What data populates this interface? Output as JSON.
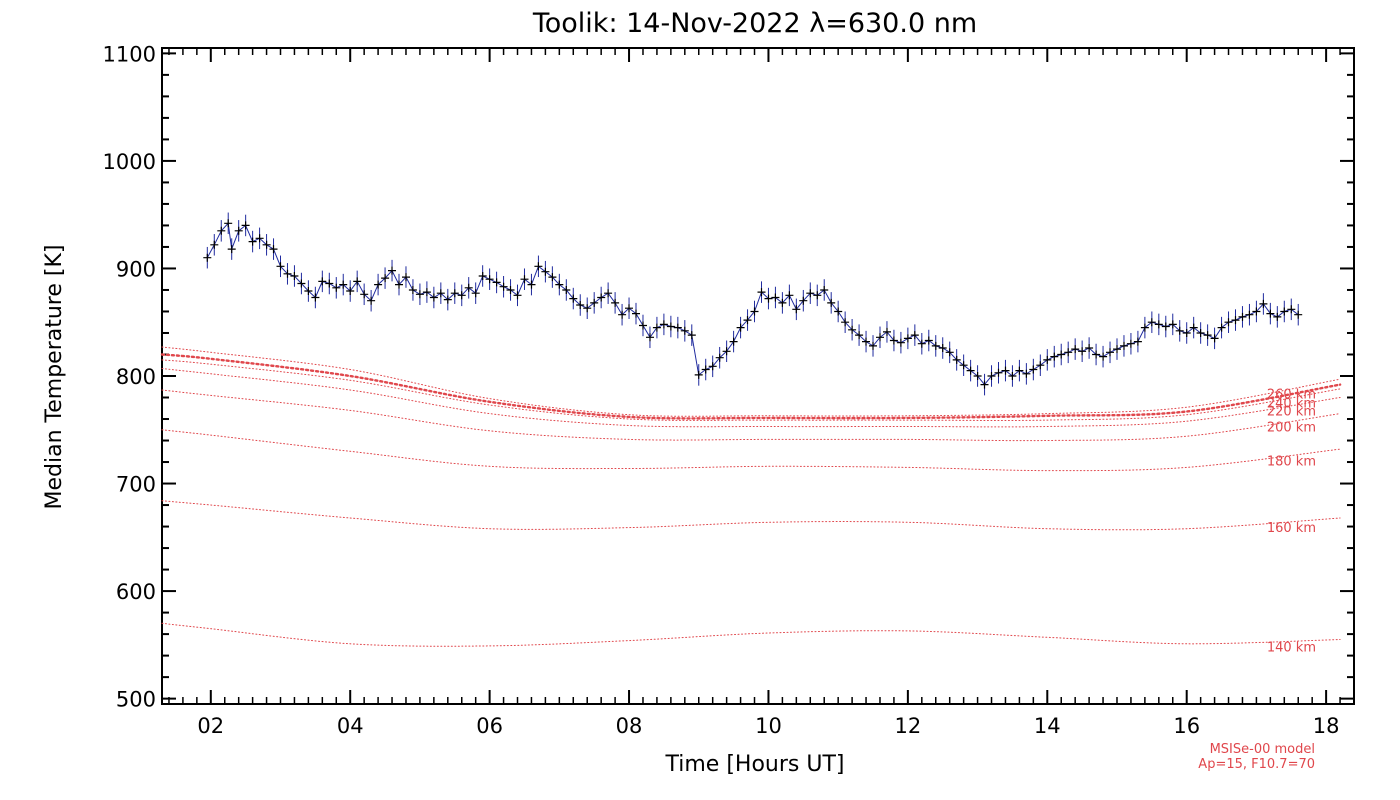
{
  "chart_data": {
    "type": "line",
    "title": "Toolik: 14-Nov-2022 λ=630.0 nm",
    "xlabel": "Time [Hours UT]",
    "ylabel": "Median Temperature [K]",
    "xlim": [
      1.3,
      18.4
    ],
    "ylim": [
      495,
      1105
    ],
    "xticks": [
      2,
      4,
      6,
      8,
      10,
      12,
      14,
      16,
      18
    ],
    "xtick_labels": [
      "02",
      "04",
      "06",
      "08",
      "10",
      "12",
      "14",
      "16",
      "18"
    ],
    "yticks": [
      500,
      600,
      700,
      800,
      900,
      1000,
      1100
    ],
    "ytick_labels": [
      "500",
      "600",
      "700",
      "800",
      "900",
      "1000",
      "1100"
    ],
    "grid": false,
    "colors": {
      "measured_line": "#1f2a9e",
      "measured_marker": "#000000",
      "model": "#e0474c"
    },
    "series": [
      {
        "name": "Median Temperature",
        "style": "line+markers+errorbars",
        "error_k": 10,
        "points": [
          [
            1.95,
            910
          ],
          [
            2.05,
            922
          ],
          [
            2.15,
            935
          ],
          [
            2.25,
            942
          ],
          [
            2.3,
            918
          ],
          [
            2.4,
            935
          ],
          [
            2.5,
            940
          ],
          [
            2.6,
            925
          ],
          [
            2.7,
            928
          ],
          [
            2.8,
            922
          ],
          [
            2.9,
            918
          ],
          [
            3.0,
            902
          ],
          [
            3.1,
            895
          ],
          [
            3.2,
            893
          ],
          [
            3.3,
            886
          ],
          [
            3.4,
            879
          ],
          [
            3.5,
            873
          ],
          [
            3.6,
            888
          ],
          [
            3.7,
            886
          ],
          [
            3.8,
            882
          ],
          [
            3.9,
            885
          ],
          [
            4.0,
            879
          ],
          [
            4.1,
            888
          ],
          [
            4.2,
            876
          ],
          [
            4.3,
            870
          ],
          [
            4.4,
            885
          ],
          [
            4.5,
            891
          ],
          [
            4.6,
            898
          ],
          [
            4.7,
            885
          ],
          [
            4.8,
            892
          ],
          [
            4.9,
            880
          ],
          [
            5.0,
            876
          ],
          [
            5.1,
            878
          ],
          [
            5.2,
            873
          ],
          [
            5.3,
            877
          ],
          [
            5.4,
            871
          ],
          [
            5.5,
            877
          ],
          [
            5.6,
            875
          ],
          [
            5.7,
            882
          ],
          [
            5.8,
            877
          ],
          [
            5.9,
            893
          ],
          [
            6.0,
            890
          ],
          [
            6.1,
            887
          ],
          [
            6.2,
            883
          ],
          [
            6.3,
            880
          ],
          [
            6.4,
            875
          ],
          [
            6.5,
            890
          ],
          [
            6.6,
            885
          ],
          [
            6.7,
            902
          ],
          [
            6.8,
            897
          ],
          [
            6.9,
            892
          ],
          [
            7.0,
            885
          ],
          [
            7.1,
            880
          ],
          [
            7.2,
            872
          ],
          [
            7.3,
            866
          ],
          [
            7.4,
            863
          ],
          [
            7.5,
            868
          ],
          [
            7.6,
            873
          ],
          [
            7.7,
            877
          ],
          [
            7.8,
            868
          ],
          [
            7.9,
            857
          ],
          [
            8.0,
            863
          ],
          [
            8.1,
            858
          ],
          [
            8.2,
            847
          ],
          [
            8.3,
            836
          ],
          [
            8.4,
            845
          ],
          [
            8.5,
            848
          ],
          [
            8.6,
            846
          ],
          [
            8.7,
            845
          ],
          [
            8.8,
            842
          ],
          [
            8.9,
            838
          ],
          [
            9.0,
            801
          ],
          [
            9.1,
            806
          ],
          [
            9.2,
            809
          ],
          [
            9.3,
            817
          ],
          [
            9.4,
            823
          ],
          [
            9.5,
            832
          ],
          [
            9.6,
            845
          ],
          [
            9.7,
            852
          ],
          [
            9.8,
            860
          ],
          [
            9.9,
            878
          ],
          [
            10.0,
            872
          ],
          [
            10.1,
            873
          ],
          [
            10.2,
            868
          ],
          [
            10.3,
            875
          ],
          [
            10.4,
            862
          ],
          [
            10.5,
            870
          ],
          [
            10.6,
            877
          ],
          [
            10.7,
            875
          ],
          [
            10.8,
            880
          ],
          [
            10.9,
            868
          ],
          [
            11.0,
            860
          ],
          [
            11.1,
            850
          ],
          [
            11.2,
            843
          ],
          [
            11.3,
            838
          ],
          [
            11.4,
            832
          ],
          [
            11.5,
            828
          ],
          [
            11.6,
            836
          ],
          [
            11.7,
            841
          ],
          [
            11.8,
            833
          ],
          [
            11.9,
            831
          ],
          [
            12.0,
            835
          ],
          [
            12.1,
            838
          ],
          [
            12.2,
            830
          ],
          [
            12.3,
            833
          ],
          [
            12.4,
            828
          ],
          [
            12.5,
            826
          ],
          [
            12.6,
            822
          ],
          [
            12.7,
            815
          ],
          [
            12.8,
            810
          ],
          [
            12.9,
            805
          ],
          [
            13.0,
            800
          ],
          [
            13.1,
            792
          ],
          [
            13.2,
            800
          ],
          [
            13.3,
            803
          ],
          [
            13.4,
            805
          ],
          [
            13.5,
            800
          ],
          [
            13.6,
            805
          ],
          [
            13.7,
            802
          ],
          [
            13.8,
            806
          ],
          [
            13.9,
            810
          ],
          [
            14.0,
            815
          ],
          [
            14.1,
            818
          ],
          [
            14.2,
            820
          ],
          [
            14.3,
            822
          ],
          [
            14.4,
            825
          ],
          [
            14.5,
            823
          ],
          [
            14.6,
            826
          ],
          [
            14.7,
            820
          ],
          [
            14.8,
            818
          ],
          [
            14.9,
            822
          ],
          [
            15.0,
            825
          ],
          [
            15.1,
            828
          ],
          [
            15.2,
            830
          ],
          [
            15.3,
            832
          ],
          [
            15.4,
            845
          ],
          [
            15.5,
            850
          ],
          [
            15.6,
            848
          ],
          [
            15.7,
            846
          ],
          [
            15.8,
            848
          ],
          [
            15.9,
            842
          ],
          [
            16.0,
            840
          ],
          [
            16.1,
            845
          ],
          [
            16.2,
            840
          ],
          [
            16.3,
            838
          ],
          [
            16.4,
            835
          ],
          [
            16.5,
            845
          ],
          [
            16.6,
            850
          ],
          [
            16.7,
            852
          ],
          [
            16.8,
            855
          ],
          [
            16.9,
            857
          ],
          [
            17.0,
            860
          ],
          [
            17.1,
            867
          ],
          [
            17.2,
            858
          ],
          [
            17.3,
            855
          ],
          [
            17.4,
            860
          ],
          [
            17.5,
            862
          ],
          [
            17.6,
            857
          ]
        ]
      },
      {
        "name": "140 km",
        "style": "dotted",
        "x": [
          1.3,
          2,
          4,
          6,
          8,
          10,
          12,
          14,
          16,
          18.2
        ],
        "values": [
          570,
          565,
          551,
          549,
          554,
          561,
          563,
          557,
          551,
          555
        ]
      },
      {
        "name": "160 km",
        "style": "dotted",
        "x": [
          1.3,
          2,
          4,
          6,
          8,
          10,
          12,
          14,
          16,
          18.2
        ],
        "values": [
          684,
          680,
          668,
          658,
          659,
          664,
          664,
          658,
          658,
          668
        ]
      },
      {
        "name": "180 km",
        "style": "dotted",
        "x": [
          1.3,
          2,
          4,
          6,
          8,
          10,
          12,
          14,
          16,
          18.2
        ],
        "values": [
          750,
          745,
          730,
          716,
          714,
          716,
          715,
          712,
          715,
          732
        ]
      },
      {
        "name": "200 km",
        "style": "dotted",
        "x": [
          1.3,
          2,
          4,
          6,
          8,
          10,
          12,
          14,
          16,
          18.2
        ],
        "values": [
          787,
          782,
          768,
          749,
          741,
          741,
          741,
          740,
          744,
          765
        ]
      },
      {
        "name": "220 km",
        "style": "dotted",
        "x": [
          1.3,
          2,
          4,
          6,
          8,
          10,
          12,
          14,
          16,
          18.2
        ],
        "values": [
          807,
          802,
          787,
          765,
          754,
          753,
          753,
          753,
          758,
          780
        ]
      },
      {
        "name": "240 km",
        "style": "dotted",
        "x": [
          1.3,
          2,
          4,
          6,
          8,
          10,
          12,
          14,
          16,
          18.2
        ],
        "values": [
          815,
          811,
          796,
          773,
          760,
          759,
          759,
          759,
          764,
          788
        ]
      },
      {
        "name": "250 km",
        "style": "dotted-bold",
        "x": [
          1.3,
          2,
          4,
          6,
          8,
          10,
          12,
          14,
          16,
          18.2
        ],
        "values": [
          820,
          816,
          800,
          776,
          762,
          761,
          761,
          763,
          767,
          792
        ]
      },
      {
        "name": "260 km",
        "style": "dotted",
        "x": [
          1.3,
          2,
          4,
          6,
          8,
          10,
          12,
          14,
          16,
          18.2
        ],
        "values": [
          827,
          822,
          806,
          779,
          764,
          763,
          763,
          765,
          771,
          797
        ]
      }
    ],
    "annotations": {
      "model_labels": [
        "140 km",
        "160 km",
        "180 km",
        "200 km",
        "220 km",
        "240 km",
        "260 km"
      ],
      "model_note_line1": "MSISe-00 model",
      "model_note_line2": "Ap=15, F10.7=70"
    }
  }
}
